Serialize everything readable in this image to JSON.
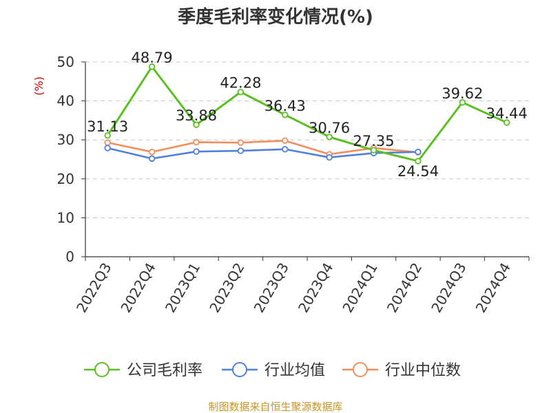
{
  "chart_data": {
    "type": "line",
    "title": "季度毛利率变化情况(%)",
    "ylabel": "(%)",
    "xlabel": "",
    "ylim": [
      0,
      50
    ],
    "yticks": [
      0,
      10,
      20,
      30,
      40,
      50
    ],
    "grid": true,
    "legend_position": "bottom",
    "categories": [
      "2022Q3",
      "2022Q4",
      "2023Q1",
      "2023Q2",
      "2023Q3",
      "2023Q4",
      "2024Q1",
      "2024Q2",
      "2024Q3",
      "2024Q4"
    ],
    "series": [
      {
        "name": "公司毛利率",
        "color": "#5bbf21",
        "values": [
          31.13,
          48.79,
          33.88,
          42.28,
          36.43,
          30.76,
          27.35,
          24.54,
          39.62,
          34.44
        ],
        "labels": [
          "31.13",
          "48.79",
          "33.88",
          "42.28",
          "36.43",
          "30.76",
          "27.35",
          "24.54",
          "39.62",
          "34.44"
        ]
      },
      {
        "name": "行业均值",
        "color": "#4f7fdf",
        "values": [
          27.9,
          25.2,
          27.0,
          27.2,
          27.6,
          25.5,
          26.6,
          26.9,
          null,
          null
        ]
      },
      {
        "name": "行业中位数",
        "color": "#f58c5a",
        "values": [
          29.3,
          26.9,
          29.4,
          29.3,
          29.8,
          26.3,
          27.9,
          26.8,
          null,
          null
        ]
      }
    ]
  },
  "source": "制图数据来自恒生聚源数据库"
}
